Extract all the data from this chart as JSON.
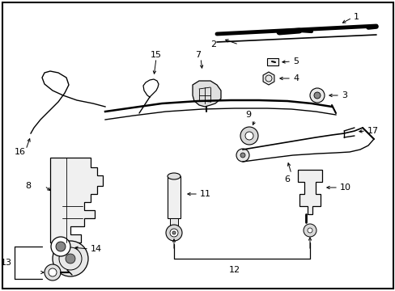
{
  "background_color": "#ffffff",
  "border_color": "#000000",
  "line_color": "#000000",
  "text_color": "#000000",
  "fig_width": 4.89,
  "fig_height": 3.6,
  "dpi": 100
}
